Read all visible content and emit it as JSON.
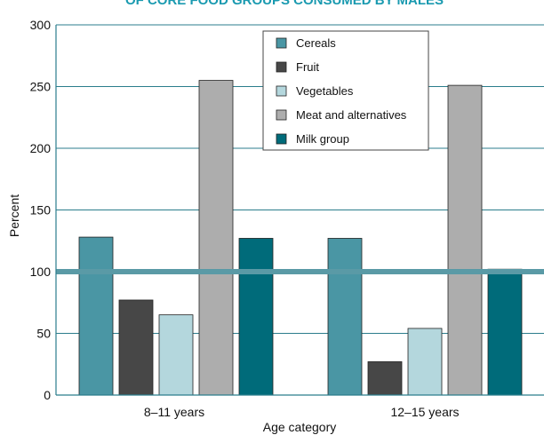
{
  "chart_data": {
    "type": "bar",
    "title": "OF CORE FOOD GROUPS CONSUMED BY MALES",
    "xlabel": "Age category",
    "ylabel": "Percent",
    "ylim": [
      0,
      300
    ],
    "yticks": [
      0,
      50,
      100,
      150,
      200,
      250,
      300
    ],
    "reference_line": 100,
    "categories": [
      "8–11 years",
      "12–15 years"
    ],
    "series": [
      {
        "name": "Cereals",
        "values": [
          128,
          127
        ],
        "color": "#4a96a4"
      },
      {
        "name": "Fruit",
        "values": [
          77,
          27
        ],
        "color": "#474747"
      },
      {
        "name": "Vegetables",
        "values": [
          65,
          54
        ],
        "color": "#b4d7dd"
      },
      {
        "name": "Meat and alternatives",
        "values": [
          255,
          251
        ],
        "color": "#adadad"
      },
      {
        "name": "Milk group",
        "values": [
          127,
          102
        ],
        "color": "#006b7a"
      }
    ],
    "reference_line_color": "#5a9aa6",
    "legend_position": "top-right",
    "grid": true
  }
}
